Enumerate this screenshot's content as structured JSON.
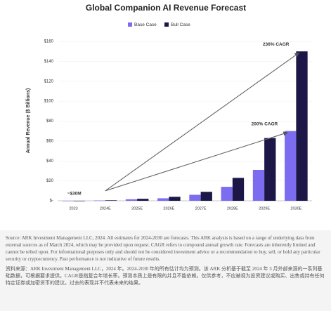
{
  "chart_data": {
    "type": "bar",
    "title": "Global Companion AI Revenue Forecast",
    "y_label": "Annual Revenue ($ Billions)",
    "categories": [
      "2023",
      "2024E",
      "2025E",
      "2026E",
      "2027E",
      "2028E",
      "2029E",
      "2030E"
    ],
    "series": [
      {
        "name": "Base Case",
        "color": "#7b6cf0",
        "values": [
          0.03,
          0.3,
          1.5,
          2.5,
          6,
          14,
          31,
          70
        ]
      },
      {
        "name": "Bull Case",
        "color": "#1c1747",
        "values": [
          0.03,
          0.5,
          2,
          4,
          9,
          23,
          63,
          150
        ]
      }
    ],
    "ylim": [
      0,
      160
    ],
    "yticks": [
      {
        "value": 0,
        "label": "$-"
      },
      {
        "value": 20,
        "label": "$20"
      },
      {
        "value": 40,
        "label": "$40"
      },
      {
        "value": 60,
        "label": "$60"
      },
      {
        "value": 80,
        "label": "$80"
      },
      {
        "value": 100,
        "label": "$100"
      },
      {
        "value": 120,
        "label": "$120"
      },
      {
        "value": 140,
        "label": "$140"
      },
      {
        "value": 160,
        "label": "$160"
      }
    ],
    "grid": true,
    "annotations": [
      "~$30M",
      "200% CAGR",
      "236% CAGR"
    ]
  },
  "notes": {
    "english": "Source: ARK Investment Management LLC, 2024. All estimates for 2024-2030 are forecasts. This ARK analysis is based on a range of underlying data from external sources as of March 2024, which may be provided upon request. CAGR refers to compound annual growth rate. Forecasts are inherently limited and cannot be relied upon. For informational purposes only and should not be considered investment advice or a recommendation to buy, sell, or hold any particular security or cryptocurrency. Past performance is not indicative of future results.",
    "chinese": "资料来源：ARK Investment Management LLC，2024 年。2024-2030 年的所有估计均为预测。该 ARK 分析基于截至 2024 年 3 月外部来源的一系列基础数据，可根据要求提供。CAGR是指复合年增长率。预测本质上是有限的并且不能依赖。仅供参考，不应被视为投资建议或购买、出售或持有任何特定证券或加密货币的建议。过去的表现并不代表未来的结果。"
  }
}
